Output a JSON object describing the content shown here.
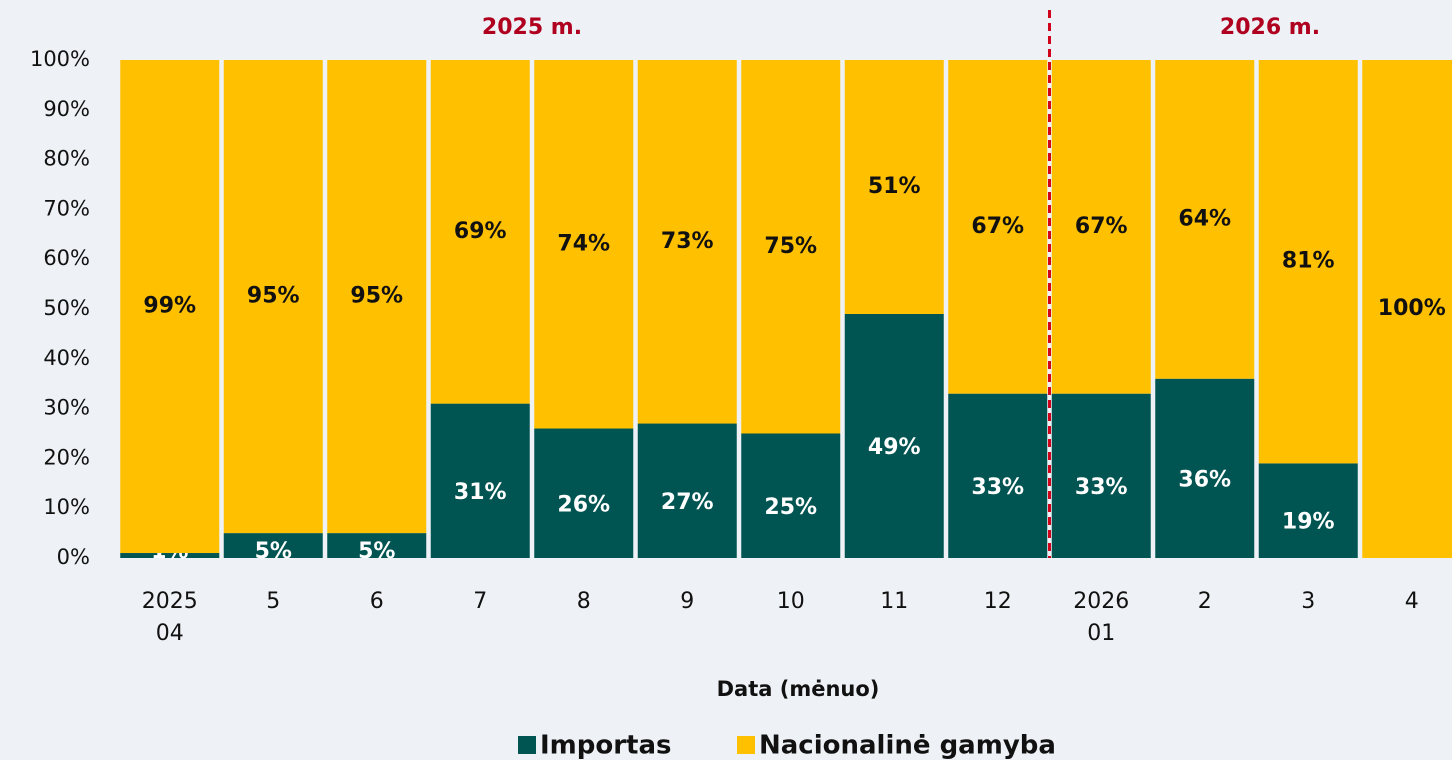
{
  "chart_data": {
    "type": "stacked_bar",
    "periods": [
      "2025 m.",
      "2026 m."
    ],
    "categories": [
      "2025\n04",
      "5",
      "6",
      "7",
      "8",
      "9",
      "10",
      "11",
      "12",
      "2026\n01",
      "2",
      "3",
      "4"
    ],
    "series": [
      {
        "name": "Importas",
        "color": "#005451",
        "values": [
          1,
          5,
          5,
          31,
          26,
          27,
          25,
          49,
          33,
          33,
          36,
          19,
          0
        ],
        "value_labels": [
          "1%",
          "5%",
          "5%",
          "31%",
          "26%",
          "27%",
          "25%",
          "49%",
          "33%",
          "33%",
          "36%",
          "19%",
          null
        ]
      },
      {
        "name": "Nacionalinė gamyba",
        "color": "#ffc000",
        "values": [
          99,
          95,
          95,
          69,
          74,
          73,
          75,
          51,
          67,
          67,
          64,
          81,
          100
        ],
        "value_labels": [
          "99%",
          "95%",
          "95%",
          "69%",
          "74%",
          "73%",
          "75%",
          "51%",
          "67%",
          "67%",
          "64%",
          "81%",
          "100%"
        ]
      }
    ],
    "xlabel": "Data (mėnuo)",
    "ylim": [
      0,
      100
    ],
    "yticks": [
      {
        "value": 0,
        "label": "0%"
      },
      {
        "value": 10,
        "label": "10%"
      },
      {
        "value": 20,
        "label": "20%"
      },
      {
        "value": 30,
        "label": "30%"
      },
      {
        "value": 40,
        "label": "40%"
      },
      {
        "value": 50,
        "label": "50%"
      },
      {
        "value": 60,
        "label": "60%"
      },
      {
        "value": 70,
        "label": "70%"
      },
      {
        "value": 80,
        "label": "80%"
      },
      {
        "value": 90,
        "label": "90%"
      },
      {
        "value": 100,
        "label": "100%"
      }
    ],
    "legend": "bottom"
  }
}
